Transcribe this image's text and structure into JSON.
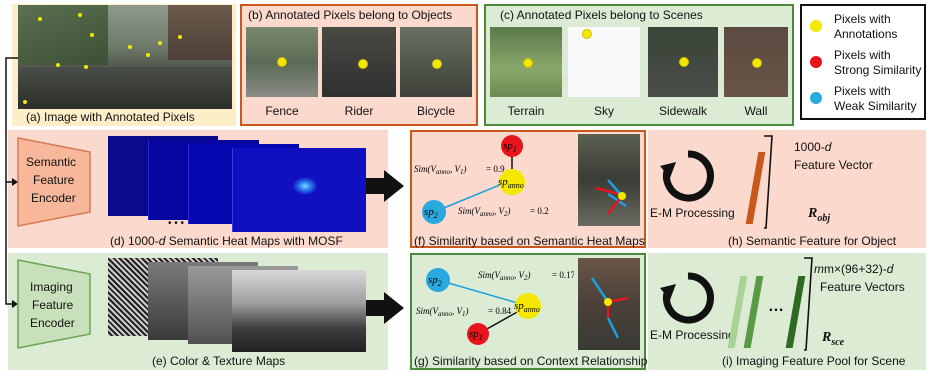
{
  "panels": {
    "a": {
      "caption": "(a) Image with Annotated Pixels"
    },
    "b": {
      "title": "(b) Annotated Pixels belong to Objects",
      "labels": [
        "Fence",
        "Rider",
        "Bicycle"
      ]
    },
    "c": {
      "title": "(c) Annotated Pixels belong to Scenes",
      "labels": [
        "Terrain",
        "Sky",
        "Sidewalk",
        "Wall"
      ]
    },
    "d": {
      "caption_pre": "(d) 1000-",
      "caption_d": "d",
      "caption_post": " Semantic Heat Maps with MOSF",
      "ellipsis": "• • •"
    },
    "e": {
      "caption": "(e) Color & Texture Maps"
    },
    "f": {
      "caption": "(f) Similarity based on Semantic Heat Maps",
      "sim1": "= 0.9",
      "sim2": "= 0.2"
    },
    "g": {
      "caption": "(g) Similarity based on Context Relationship",
      "sim1": "= 0.84",
      "sim2": "= 0.17"
    },
    "h": {
      "caption": "(h) Semantic Feature for Object",
      "feat_top_num": "1000-",
      "feat_top_d": "d",
      "feat_bottom": "Feature Vector",
      "vec_sub": "obj"
    },
    "i": {
      "caption": "(i) Imaging Feature Pool for Scene",
      "feat_top": "m×(96+32)-",
      "feat_top_d": "d",
      "feat_bottom": "Feature Vectors",
      "vec_sub": "sce",
      "ellipsis": "…"
    }
  },
  "encoders": {
    "semantic": [
      "Semantic",
      "Feature",
      "Encoder"
    ],
    "imaging": [
      "Imaging",
      "Feature",
      "Encoder"
    ]
  },
  "em_label": "E-M Processing",
  "legend": {
    "items": [
      {
        "text": [
          "Pixels with",
          "Annotations"
        ],
        "color": "#f4e800"
      },
      {
        "text": [
          "Pixels with",
          "Strong Similarity"
        ],
        "color": "#e8141c"
      },
      {
        "text": [
          "Pixels with",
          "Weak Similarity"
        ],
        "color": "#2aa8e0"
      }
    ]
  },
  "colors": {
    "semantic_bg": "#fbd9cc",
    "imaging_bg": "#dcecd4",
    "object_border": "#c8581c",
    "scene_border": "#4a8a3a",
    "yellow_bg": "#fcefc8",
    "encoder_orange": "#f7b79b",
    "encoder_green": "#c9e1bb"
  },
  "math": {
    "sim_anno": "anno",
    "sp1": "1",
    "sp2": "2",
    "sp_anno": "anno",
    "sim_text": "Sim",
    "V": "V",
    "v1": "1",
    "v2": "2"
  }
}
